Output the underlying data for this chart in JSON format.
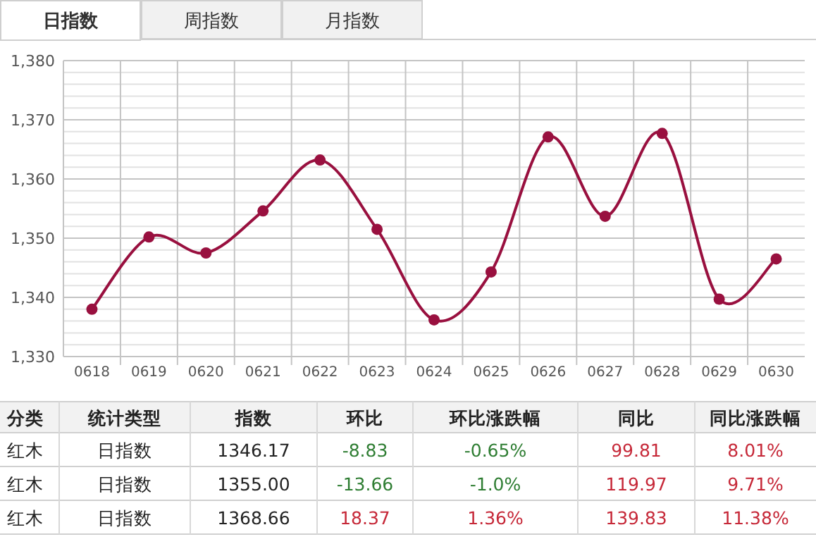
{
  "chart_data": {
    "type": "line",
    "categories": [
      "0618",
      "0619",
      "0620",
      "0621",
      "0622",
      "0623",
      "0624",
      "0625",
      "0626",
      "0627",
      "0628",
      "0629",
      "0630"
    ],
    "series": [
      {
        "color": "#99103f",
        "values": [
          1338.0,
          1350.2,
          1347.5,
          1354.6,
          1363.2,
          1351.5,
          1336.2,
          1344.3,
          1367.1,
          1353.7,
          1367.7,
          1339.7,
          1346.5
        ]
      }
    ],
    "ylim": [
      1330,
      1380
    ],
    "yticks": [
      {
        "value": 1330,
        "label": "1,330"
      },
      {
        "value": 1332,
        "label": null
      },
      {
        "value": 1334,
        "label": null
      },
      {
        "value": 1336,
        "label": null
      },
      {
        "value": 1338,
        "label": null
      },
      {
        "value": 1340,
        "label": "1,340"
      },
      {
        "value": 1342,
        "label": null
      },
      {
        "value": 1344,
        "label": null
      },
      {
        "value": 1346,
        "label": null
      },
      {
        "value": 1348,
        "label": null
      },
      {
        "value": 1350,
        "label": "1,350"
      },
      {
        "value": 1352,
        "label": null
      },
      {
        "value": 1354,
        "label": null
      },
      {
        "value": 1356,
        "label": null
      },
      {
        "value": 1358,
        "label": null
      },
      {
        "value": 1360,
        "label": "1,360"
      },
      {
        "value": 1362,
        "label": null
      },
      {
        "value": 1364,
        "label": null
      },
      {
        "value": 1366,
        "label": null
      },
      {
        "value": 1368,
        "label": null
      },
      {
        "value": 1370,
        "label": "1,370"
      },
      {
        "value": 1372,
        "label": null
      },
      {
        "value": 1374,
        "label": null
      },
      {
        "value": 1376,
        "label": null
      },
      {
        "value": 1378,
        "label": null
      },
      {
        "value": 1380,
        "label": "1,380"
      }
    ],
    "grid": true,
    "marker": "circle",
    "line_style": "solid",
    "annotations": [
      "日指数",
      "周指数",
      "月指数",
      "分类",
      "统计类型",
      "指数",
      "环比",
      "环比涨跌幅",
      "同比",
      "同比涨跌幅",
      "红木",
      "日指数",
      "1346.17",
      "-8.83",
      "-0.65%",
      "99.81",
      "8.01%",
      "红木",
      "日指数",
      "1355.00",
      "-13.66",
      "-1.0%",
      "119.97",
      "9.71%",
      "红木",
      "日指数",
      "1368.66",
      "18.37",
      "1.36%",
      "139.83",
      "11.38%"
    ]
  }
}
